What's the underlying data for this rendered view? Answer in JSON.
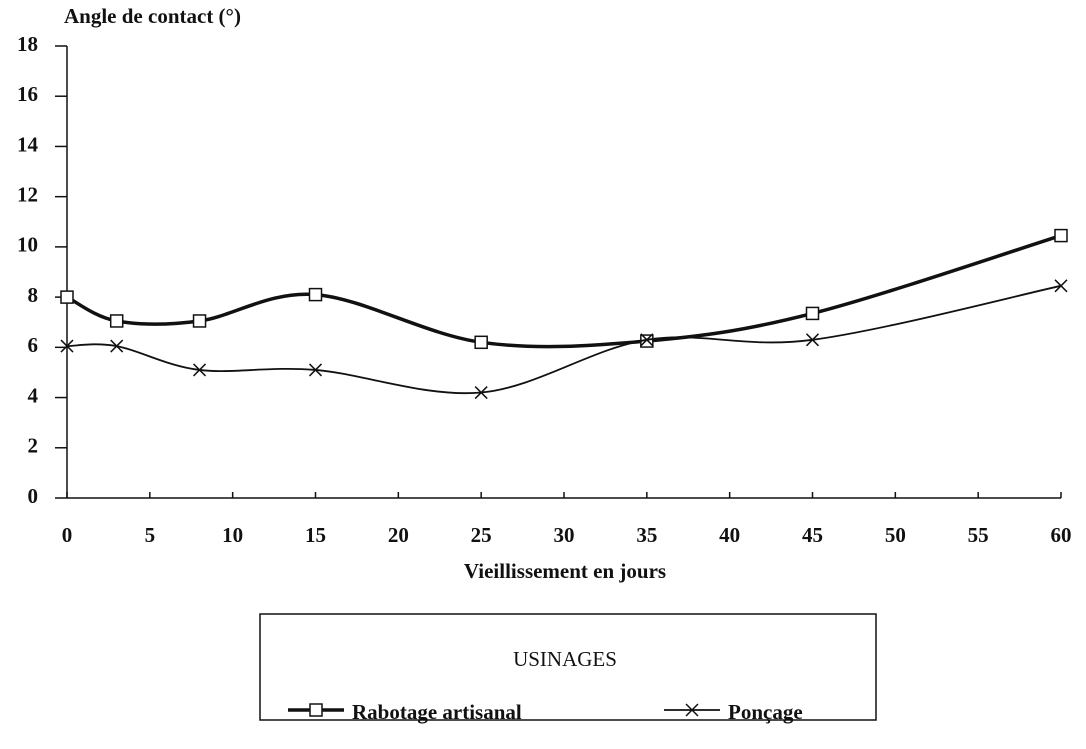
{
  "chart_data": {
    "type": "line",
    "ylabel": "Angle de contact (°)",
    "xlabel": "Vieillissement en jours",
    "x": [
      0,
      3,
      8,
      15,
      25,
      35,
      45,
      60
    ],
    "series": [
      {
        "name": "Rabotage artisanal",
        "color": "#111111",
        "marker": "square",
        "values": [
          8,
          7.05,
          7.05,
          8.1,
          6.2,
          6.25,
          7.35,
          10.45
        ]
      },
      {
        "name": "Ponçage",
        "color": "#111111",
        "marker": "x",
        "values": [
          6.05,
          6.05,
          5.1,
          5.1,
          4.2,
          6.3,
          6.3,
          8.45
        ]
      }
    ],
    "xlim": [
      0,
      60
    ],
    "xticks": [
      0,
      5,
      10,
      15,
      20,
      25,
      30,
      35,
      40,
      45,
      50,
      55,
      60
    ],
    "ylim": [
      0,
      18
    ],
    "yticks": [
      0,
      2,
      4,
      6,
      8,
      10,
      12,
      14,
      16,
      18
    ],
    "legend": {
      "title": "USINAGES"
    }
  }
}
